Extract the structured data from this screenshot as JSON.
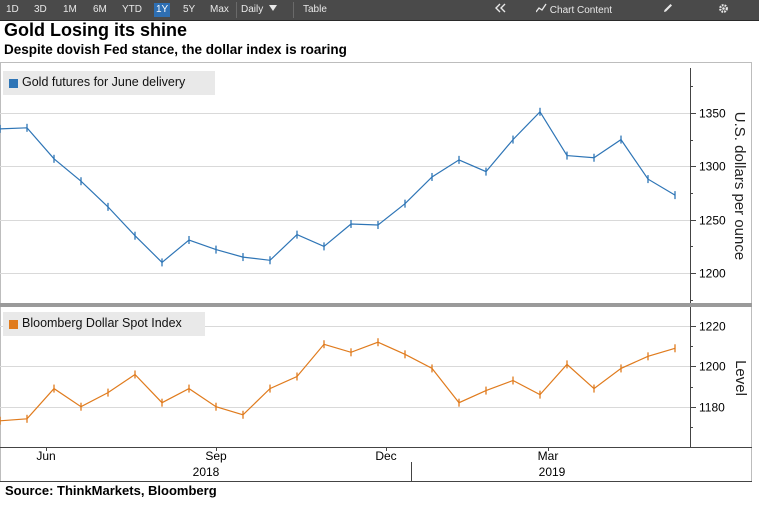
{
  "toolbar": {
    "ranges": [
      "1D",
      "3D",
      "1M",
      "6M",
      "YTD",
      "1Y",
      "5Y",
      "Max"
    ],
    "active_range": "1Y",
    "frequency": "Daily",
    "frequency_icon": "triangle-down-icon",
    "table_label": "Table",
    "collapse_icon": "double-chevron-left-icon",
    "chart_content_label": "Chart Content",
    "chart_content_icon": "line-chart-icon",
    "edit_icon": "pencil-icon",
    "settings_icon": "gear-icon"
  },
  "colors": {
    "gold": "#2e75b6",
    "dollar": "#e07b1d",
    "toolbar": "#4a4a4a",
    "active": "#2e6fb3"
  },
  "chart_data": [
    {
      "type": "line",
      "title": "Gold Losing its shine",
      "subtitle": "Despite dovish Fed stance, the dollar index is roaring",
      "series_name": "Gold futures for June delivery",
      "ylabel": "U.S. dollars per ounce",
      "ylim": [
        1172,
        1392
      ],
      "yticks": [
        1200,
        1250,
        1300,
        1350
      ],
      "x": [
        0,
        10,
        20,
        30,
        40,
        50,
        60,
        70,
        80,
        90,
        100,
        110,
        120,
        130,
        140,
        150,
        160,
        170,
        180,
        190,
        200,
        210,
        220,
        230,
        240,
        250
      ],
      "values": [
        1335,
        1336,
        1307,
        1286,
        1262,
        1235,
        1210,
        1231,
        1222,
        1215,
        1212,
        1236,
        1225,
        1246,
        1245,
        1265,
        1290,
        1306,
        1295,
        1325,
        1351,
        1310,
        1308,
        1325,
        1288,
        1273
      ]
    },
    {
      "type": "line",
      "series_name": "Bloomberg Dollar Spot Index",
      "ylabel": "Level",
      "ylim": [
        1160,
        1228
      ],
      "yticks": [
        1180,
        1200,
        1220
      ],
      "x": [
        0,
        10,
        20,
        30,
        40,
        50,
        60,
        70,
        80,
        90,
        100,
        110,
        120,
        130,
        140,
        150,
        160,
        170,
        180,
        190,
        200,
        210,
        220,
        230,
        240,
        250
      ],
      "values": [
        1173,
        1174,
        1189,
        1180,
        1187,
        1196,
        1182,
        1189,
        1180,
        1176,
        1189,
        1195,
        1211,
        1207,
        1212,
        1206,
        1199,
        1182,
        1188,
        1193,
        1186,
        1201,
        1189,
        1199,
        1205,
        1209
      ]
    }
  ],
  "x_axis": {
    "month_labels": [
      "Jun",
      "Sep",
      "Dec",
      "Mar"
    ],
    "year_labels": [
      "2018",
      "2019"
    ]
  },
  "source": "Source: ThinkMarkets, Bloomberg"
}
